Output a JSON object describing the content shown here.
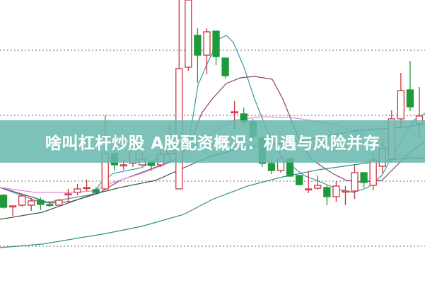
{
  "title": "啥叫杠杆炒股 A股配资概况：机遇与风险并存",
  "chart_data": {
    "type": "candlestick",
    "title": "",
    "xlabel": "",
    "ylabel": "",
    "ylim": [
      0,
      40
    ],
    "grid": true,
    "grid_levels": [
      5.2,
      14.4,
      23.7,
      32.9
    ],
    "colors": {
      "up": "#d0343c",
      "down": "#1e9a3a",
      "grid": "#888888"
    },
    "candles": [
      {
        "o": 12.4,
        "c": 10.7,
        "h": 12.6,
        "l": 10.5
      },
      {
        "o": 10.9,
        "c": 10.9,
        "h": 10.9,
        "l": 9.5
      },
      {
        "o": 11.0,
        "c": 12.3,
        "h": 12.6,
        "l": 10.8
      },
      {
        "o": 11.0,
        "c": 11.6,
        "h": 12.0,
        "l": 10.2
      },
      {
        "o": 11.7,
        "c": 11.1,
        "h": 12.1,
        "l": 10.3
      },
      {
        "o": 11.1,
        "c": 11.0,
        "h": 11.5,
        "l": 10.7
      },
      {
        "o": 11.0,
        "c": 11.7,
        "h": 11.9,
        "l": 11.1
      },
      {
        "o": 12.6,
        "c": 12.6,
        "h": 13.3,
        "l": 11.5
      },
      {
        "o": 12.8,
        "c": 13.3,
        "h": 14.0,
        "l": 12.4
      },
      {
        "o": 13.5,
        "c": 13.5,
        "h": 14.6,
        "l": 13.0
      },
      {
        "o": 13.2,
        "c": 12.8,
        "h": 13.5,
        "l": 12.7
      },
      {
        "o": 13.3,
        "c": 18.3,
        "h": 23.7,
        "l": 13.2
      },
      {
        "o": 18.3,
        "c": 16.7,
        "h": 18.7,
        "l": 15.9
      },
      {
        "o": 16.7,
        "c": 16.7,
        "h": 17.5,
        "l": 16.0
      },
      {
        "o": 16.9,
        "c": 18.7,
        "h": 19.0,
        "l": 16.4
      },
      {
        "o": 16.7,
        "c": 17.5,
        "h": 18.5,
        "l": 16.5
      },
      {
        "o": 17.1,
        "c": 16.6,
        "h": 17.3,
        "l": 15.9
      },
      {
        "o": 16.7,
        "c": 18.2,
        "h": 18.7,
        "l": 16.4
      },
      {
        "o": 18.3,
        "c": 18.7,
        "h": 22.3,
        "l": 17.3
      },
      {
        "o": 13.3,
        "c": 30.3,
        "h": 40.0,
        "l": 13.3
      },
      {
        "o": 30.5,
        "c": 40.0,
        "h": 40.0,
        "l": 30.0
      },
      {
        "o": 35.0,
        "c": 32.2,
        "h": 36.0,
        "l": 28.3
      },
      {
        "o": 32.2,
        "c": 35.5,
        "h": 36.0,
        "l": 29.5
      },
      {
        "o": 35.6,
        "c": 32.0,
        "h": 35.7,
        "l": 30.8
      },
      {
        "o": 31.8,
        "c": 29.3,
        "h": 31.8,
        "l": 28.9
      },
      {
        "o": 24.2,
        "c": 24.2,
        "h": 25.7,
        "l": 21.8
      },
      {
        "o": 23.9,
        "c": 22.8,
        "h": 24.8,
        "l": 22.2
      },
      {
        "o": 22.8,
        "c": 20.7,
        "h": 23.2,
        "l": 20.1
      },
      {
        "o": 20.5,
        "c": 16.9,
        "h": 21.0,
        "l": 16.4
      },
      {
        "o": 16.9,
        "c": 15.9,
        "h": 17.4,
        "l": 15.4
      },
      {
        "o": 15.9,
        "c": 17.6,
        "h": 17.9,
        "l": 15.6
      },
      {
        "o": 17.6,
        "c": 15.1,
        "h": 17.6,
        "l": 15.1
      },
      {
        "o": 15.2,
        "c": 13.9,
        "h": 15.3,
        "l": 13.8
      },
      {
        "o": 13.3,
        "c": 13.3,
        "h": 15.7,
        "l": 12.7
      },
      {
        "o": 13.4,
        "c": 13.8,
        "h": 15.2,
        "l": 13.2
      },
      {
        "o": 13.5,
        "c": 12.2,
        "h": 13.8,
        "l": 11.0
      },
      {
        "o": 12.2,
        "c": 13.7,
        "h": 14.4,
        "l": 11.5
      },
      {
        "o": 13.0,
        "c": 13.0,
        "h": 13.7,
        "l": 11.0
      },
      {
        "o": 13.0,
        "c": 15.6,
        "h": 16.7,
        "l": 11.9
      },
      {
        "o": 15.6,
        "c": 14.2,
        "h": 15.6,
        "l": 13.5
      },
      {
        "o": 13.8,
        "c": 17.4,
        "h": 18.3,
        "l": 13.1
      },
      {
        "o": 16.5,
        "c": 19.0,
        "h": 20.5,
        "l": 15.5
      },
      {
        "o": 17.5,
        "c": 23.2,
        "h": 24.4,
        "l": 17.0
      },
      {
        "o": 23.2,
        "c": 27.2,
        "h": 29.7,
        "l": 22.0
      },
      {
        "o": 27.3,
        "c": 24.9,
        "h": 31.4,
        "l": 24.3
      },
      {
        "o": 22.5,
        "c": 23.6,
        "h": 27.7,
        "l": 20.5
      }
    ],
    "moving_averages": [
      {
        "color": "#3a9aa6",
        "values": [
          [
            0,
            13.5
          ],
          [
            60,
            11.3
          ],
          [
            130,
            12.5
          ],
          [
            143,
            14.2
          ],
          [
            160,
            15.5
          ],
          [
            200,
            16.3
          ],
          [
            230,
            18.0
          ],
          [
            255,
            18.5
          ],
          [
            268,
            20.5
          ],
          [
            280,
            28.0
          ],
          [
            293,
            31.0
          ],
          [
            310,
            34.5
          ],
          [
            320,
            35.0
          ],
          [
            330,
            34.0
          ],
          [
            345,
            30.5
          ],
          [
            360,
            26.0
          ],
          [
            380,
            21.0
          ],
          [
            400,
            17.5
          ],
          [
            430,
            15.2
          ],
          [
            460,
            14.0
          ],
          [
            480,
            13.2
          ],
          [
            500,
            12.8
          ],
          [
            520,
            13.5
          ],
          [
            540,
            15.2
          ],
          [
            555,
            18.0
          ],
          [
            567,
            20.0
          ],
          [
            585,
            23.0
          ],
          [
            601,
            24.0
          ]
        ]
      },
      {
        "color": "#84406e",
        "values": [
          [
            0,
            13.5
          ],
          [
            50,
            12.0
          ],
          [
            70,
            11.3
          ],
          [
            100,
            11.5
          ],
          [
            140,
            12.7
          ],
          [
            170,
            14.5
          ],
          [
            210,
            16.0
          ],
          [
            250,
            17.5
          ],
          [
            268,
            19.5
          ],
          [
            285,
            24.0
          ],
          [
            300,
            26.0
          ],
          [
            320,
            28.2
          ],
          [
            340,
            29.0
          ],
          [
            360,
            29.2
          ],
          [
            385,
            28.8
          ],
          [
            400,
            26.0
          ],
          [
            420,
            21.0
          ],
          [
            440,
            17.5
          ],
          [
            470,
            15.5
          ],
          [
            490,
            14.5
          ],
          [
            510,
            14.3
          ],
          [
            540,
            14.5
          ],
          [
            560,
            16.5
          ],
          [
            580,
            18.5
          ],
          [
            601,
            20.0
          ]
        ]
      },
      {
        "color": "#e08ae0",
        "values": [
          [
            0,
            13.5
          ],
          [
            50,
            12.8
          ],
          [
            100,
            12.8
          ],
          [
            130,
            13.0
          ],
          [
            160,
            14.2
          ],
          [
            200,
            15.5
          ],
          [
            240,
            17.0
          ],
          [
            265,
            18.5
          ],
          [
            290,
            20.5
          ],
          [
            330,
            23.0
          ],
          [
            370,
            23.5
          ],
          [
            410,
            23.4
          ],
          [
            440,
            23.0
          ],
          [
            470,
            22.5
          ],
          [
            500,
            21.5
          ],
          [
            530,
            20.0
          ],
          [
            560,
            18.2
          ],
          [
            601,
            17.5
          ]
        ]
      },
      {
        "color": "#3f5a3f",
        "values": [
          [
            0,
            9.0
          ],
          [
            60,
            10.0
          ],
          [
            130,
            12.5
          ],
          [
            170,
            13.5
          ],
          [
            220,
            14.5
          ],
          [
            265,
            16.5
          ],
          [
            300,
            18.0
          ],
          [
            340,
            19.0
          ],
          [
            380,
            19.5
          ],
          [
            420,
            20.0
          ],
          [
            460,
            20.7
          ],
          [
            500,
            21.5
          ],
          [
            540,
            21.8
          ],
          [
            570,
            22.0
          ],
          [
            601,
            22.5
          ]
        ]
      },
      {
        "color": "#2f8c8c",
        "values": [
          [
            0,
            5.0
          ],
          [
            60,
            5.5
          ],
          [
            150,
            7.0
          ],
          [
            200,
            8.0
          ],
          [
            260,
            9.7
          ],
          [
            300,
            11.8
          ],
          [
            350,
            13.7
          ],
          [
            400,
            15.0
          ],
          [
            450,
            16.0
          ],
          [
            500,
            16.7
          ],
          [
            560,
            17.5
          ],
          [
            601,
            17.7
          ]
        ]
      }
    ]
  }
}
